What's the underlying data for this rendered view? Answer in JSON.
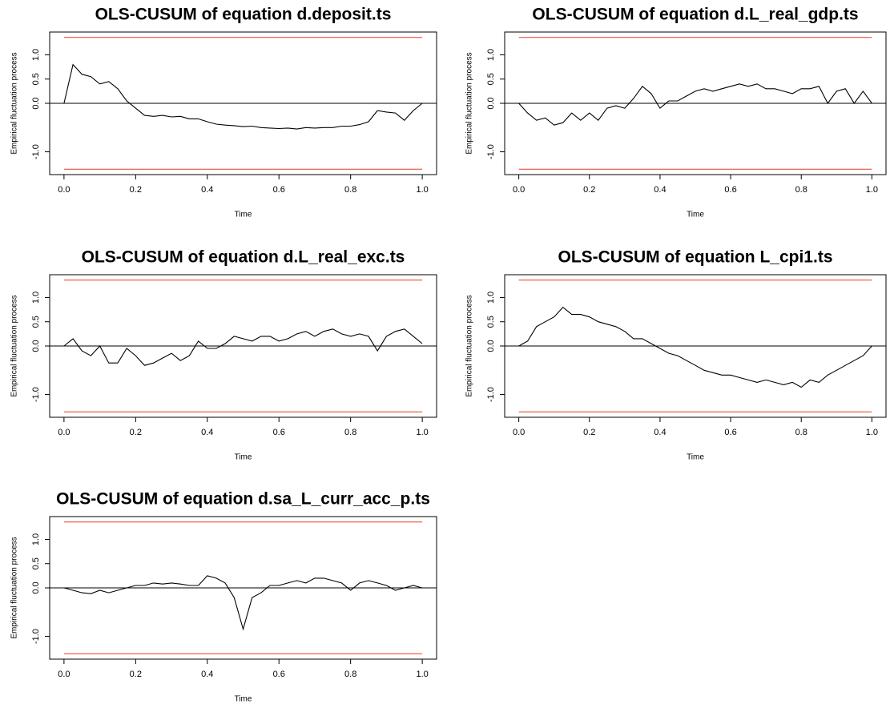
{
  "chart_data": [
    {
      "type": "line",
      "title": "OLS-CUSUM of equation d.deposit.ts",
      "xlabel": "Time",
      "ylabel": "Empirical fluctuation process",
      "x": [
        0,
        0.025,
        0.05,
        0.075,
        0.1,
        0.125,
        0.15,
        0.175,
        0.2,
        0.225,
        0.25,
        0.275,
        0.3,
        0.325,
        0.35,
        0.375,
        0.4,
        0.425,
        0.45,
        0.475,
        0.5,
        0.525,
        0.55,
        0.575,
        0.6,
        0.625,
        0.65,
        0.675,
        0.7,
        0.725,
        0.75,
        0.775,
        0.8,
        0.825,
        0.85,
        0.875,
        0.9,
        0.925,
        0.95,
        0.975,
        1
      ],
      "values": [
        0,
        0.8,
        0.6,
        0.55,
        0.4,
        0.45,
        0.3,
        0.05,
        -0.1,
        -0.25,
        -0.27,
        -0.25,
        -0.28,
        -0.27,
        -0.32,
        -0.32,
        -0.38,
        -0.43,
        -0.45,
        -0.46,
        -0.48,
        -0.47,
        -0.5,
        -0.51,
        -0.52,
        -0.51,
        -0.53,
        -0.5,
        -0.51,
        -0.5,
        -0.5,
        -0.47,
        -0.47,
        -0.44,
        -0.38,
        -0.15,
        -0.18,
        -0.2,
        -0.35,
        -0.15,
        0
      ],
      "color": "#000000",
      "boundaries": [
        1.358,
        -1.358
      ],
      "boundary_color": "#e8392b",
      "reference_line": 0,
      "xlim": [
        -0.04,
        1.04
      ],
      "ylim": [
        -1.47,
        1.47
      ],
      "xticks": [
        {
          "value": 0,
          "label": "0.0"
        },
        0.2,
        0.4,
        0.6,
        0.8,
        {
          "value": 1,
          "label": "1.0"
        }
      ],
      "yticks": [
        {
          "value": -1,
          "label": "-1.0"
        },
        {
          "value": 0,
          "label": "0.0"
        },
        0.5,
        {
          "value": 1,
          "label": "1.0"
        }
      ]
    },
    {
      "type": "line",
      "title": "OLS-CUSUM of equation d.L_real_gdp.ts",
      "xlabel": "Time",
      "ylabel": "Empirical fluctuation process",
      "x": [
        0,
        0.025,
        0.05,
        0.075,
        0.1,
        0.125,
        0.15,
        0.175,
        0.2,
        0.225,
        0.25,
        0.275,
        0.3,
        0.325,
        0.35,
        0.375,
        0.4,
        0.425,
        0.45,
        0.475,
        0.5,
        0.525,
        0.55,
        0.575,
        0.6,
        0.625,
        0.65,
        0.675,
        0.7,
        0.725,
        0.75,
        0.775,
        0.8,
        0.825,
        0.85,
        0.875,
        0.9,
        0.925,
        0.95,
        0.975,
        1
      ],
      "values": [
        0,
        -0.2,
        -0.35,
        -0.3,
        -0.45,
        -0.4,
        -0.2,
        -0.35,
        -0.2,
        -0.35,
        -0.1,
        -0.05,
        -0.1,
        0.1,
        0.35,
        0.2,
        -0.1,
        0.05,
        0.05,
        0.15,
        0.25,
        0.3,
        0.25,
        0.3,
        0.35,
        0.4,
        0.35,
        0.4,
        0.3,
        0.3,
        0.25,
        0.2,
        0.3,
        0.3,
        0.35,
        0,
        0.25,
        0.3,
        0,
        0.25,
        0
      ],
      "color": "#000000",
      "boundaries": [
        1.358,
        -1.358
      ],
      "boundary_color": "#e8392b",
      "reference_line": 0,
      "xlim": [
        -0.04,
        1.04
      ],
      "ylim": [
        -1.47,
        1.47
      ],
      "xticks": [
        {
          "value": 0,
          "label": "0.0"
        },
        0.2,
        0.4,
        0.6,
        0.8,
        {
          "value": 1,
          "label": "1.0"
        }
      ],
      "yticks": [
        {
          "value": -1,
          "label": "-1.0"
        },
        {
          "value": 0,
          "label": "0.0"
        },
        0.5,
        {
          "value": 1,
          "label": "1.0"
        }
      ]
    },
    {
      "type": "line",
      "title": "OLS-CUSUM of equation d.L_real_exc.ts",
      "xlabel": "Time",
      "ylabel": "Empirical fluctuation process",
      "x": [
        0,
        0.025,
        0.05,
        0.075,
        0.1,
        0.125,
        0.15,
        0.175,
        0.2,
        0.225,
        0.25,
        0.275,
        0.3,
        0.325,
        0.35,
        0.375,
        0.4,
        0.425,
        0.45,
        0.475,
        0.5,
        0.525,
        0.55,
        0.575,
        0.6,
        0.625,
        0.65,
        0.675,
        0.7,
        0.725,
        0.75,
        0.775,
        0.8,
        0.825,
        0.85,
        0.875,
        0.9,
        0.925,
        0.95,
        0.975,
        1
      ],
      "values": [
        0,
        0.15,
        -0.1,
        -0.2,
        0,
        -0.35,
        -0.35,
        -0.05,
        -0.2,
        -0.4,
        -0.35,
        -0.25,
        -0.15,
        -0.3,
        -0.2,
        0.1,
        -0.05,
        -0.05,
        0.05,
        0.2,
        0.15,
        0.1,
        0.2,
        0.2,
        0.1,
        0.15,
        0.25,
        0.3,
        0.2,
        0.3,
        0.35,
        0.25,
        0.2,
        0.25,
        0.2,
        -0.1,
        0.2,
        0.3,
        0.35,
        0.2,
        0.05
      ],
      "color": "#000000",
      "boundaries": [
        1.358,
        -1.358
      ],
      "boundary_color": "#e8392b",
      "reference_line": 0,
      "xlim": [
        -0.04,
        1.04
      ],
      "ylim": [
        -1.47,
        1.47
      ],
      "xticks": [
        {
          "value": 0,
          "label": "0.0"
        },
        0.2,
        0.4,
        0.6,
        0.8,
        {
          "value": 1,
          "label": "1.0"
        }
      ],
      "yticks": [
        {
          "value": -1,
          "label": "-1.0"
        },
        {
          "value": 0,
          "label": "0.0"
        },
        0.5,
        {
          "value": 1,
          "label": "1.0"
        }
      ]
    },
    {
      "type": "line",
      "title": "OLS-CUSUM of equation L_cpi1.ts",
      "xlabel": "Time",
      "ylabel": "Empirical fluctuation process",
      "x": [
        0,
        0.025,
        0.05,
        0.075,
        0.1,
        0.125,
        0.15,
        0.175,
        0.2,
        0.225,
        0.25,
        0.275,
        0.3,
        0.325,
        0.35,
        0.375,
        0.4,
        0.425,
        0.45,
        0.475,
        0.5,
        0.525,
        0.55,
        0.575,
        0.6,
        0.625,
        0.65,
        0.675,
        0.7,
        0.725,
        0.75,
        0.775,
        0.8,
        0.825,
        0.85,
        0.875,
        0.9,
        0.925,
        0.95,
        0.975,
        1
      ],
      "values": [
        0,
        0.1,
        0.4,
        0.5,
        0.6,
        0.8,
        0.65,
        0.65,
        0.6,
        0.5,
        0.45,
        0.4,
        0.3,
        0.15,
        0.15,
        0.05,
        -0.05,
        -0.15,
        -0.2,
        -0.3,
        -0.4,
        -0.5,
        -0.55,
        -0.6,
        -0.6,
        -0.65,
        -0.7,
        -0.75,
        -0.7,
        -0.75,
        -0.8,
        -0.75,
        -0.85,
        -0.7,
        -0.75,
        -0.6,
        -0.5,
        -0.4,
        -0.3,
        -0.2,
        0
      ],
      "color": "#000000",
      "boundaries": [
        1.358,
        -1.358
      ],
      "boundary_color": "#e8392b",
      "reference_line": 0,
      "xlim": [
        -0.04,
        1.04
      ],
      "ylim": [
        -1.47,
        1.47
      ],
      "xticks": [
        {
          "value": 0,
          "label": "0.0"
        },
        0.2,
        0.4,
        0.6,
        0.8,
        {
          "value": 1,
          "label": "1.0"
        }
      ],
      "yticks": [
        {
          "value": -1,
          "label": "-1.0"
        },
        {
          "value": 0,
          "label": "0.0"
        },
        0.5,
        {
          "value": 1,
          "label": "1.0"
        }
      ]
    },
    {
      "type": "line",
      "title": "OLS-CUSUM of equation d.sa_L_curr_acc_p.ts",
      "xlabel": "Time",
      "ylabel": "Empirical fluctuation process",
      "x": [
        0,
        0.025,
        0.05,
        0.075,
        0.1,
        0.125,
        0.15,
        0.175,
        0.2,
        0.225,
        0.25,
        0.275,
        0.3,
        0.325,
        0.35,
        0.375,
        0.4,
        0.425,
        0.45,
        0.475,
        0.5,
        0.525,
        0.55,
        0.575,
        0.6,
        0.625,
        0.65,
        0.675,
        0.7,
        0.725,
        0.75,
        0.775,
        0.8,
        0.825,
        0.85,
        0.875,
        0.9,
        0.925,
        0.95,
        0.975,
        1
      ],
      "values": [
        0,
        -0.05,
        -0.1,
        -0.12,
        -0.05,
        -0.1,
        -0.05,
        0,
        0.05,
        0.05,
        0.1,
        0.08,
        0.1,
        0.08,
        0.05,
        0.05,
        0.25,
        0.2,
        0.1,
        -0.2,
        -0.85,
        -0.2,
        -0.1,
        0.05,
        0.05,
        0.1,
        0.15,
        0.1,
        0.2,
        0.2,
        0.15,
        0.1,
        -0.05,
        0.1,
        0.15,
        0.1,
        0.05,
        -0.05,
        0,
        0.05,
        0
      ],
      "color": "#000000",
      "boundaries": [
        1.358,
        -1.358
      ],
      "boundary_color": "#e8392b",
      "reference_line": 0,
      "xlim": [
        -0.04,
        1.04
      ],
      "ylim": [
        -1.47,
        1.47
      ],
      "xticks": [
        {
          "value": 0,
          "label": "0.0"
        },
        0.2,
        0.4,
        0.6,
        0.8,
        {
          "value": 1,
          "label": "1.0"
        }
      ],
      "yticks": [
        {
          "value": -1,
          "label": "-1.0"
        },
        {
          "value": 0,
          "label": "0.0"
        },
        0.5,
        {
          "value": 1,
          "label": "1.0"
        }
      ]
    }
  ]
}
